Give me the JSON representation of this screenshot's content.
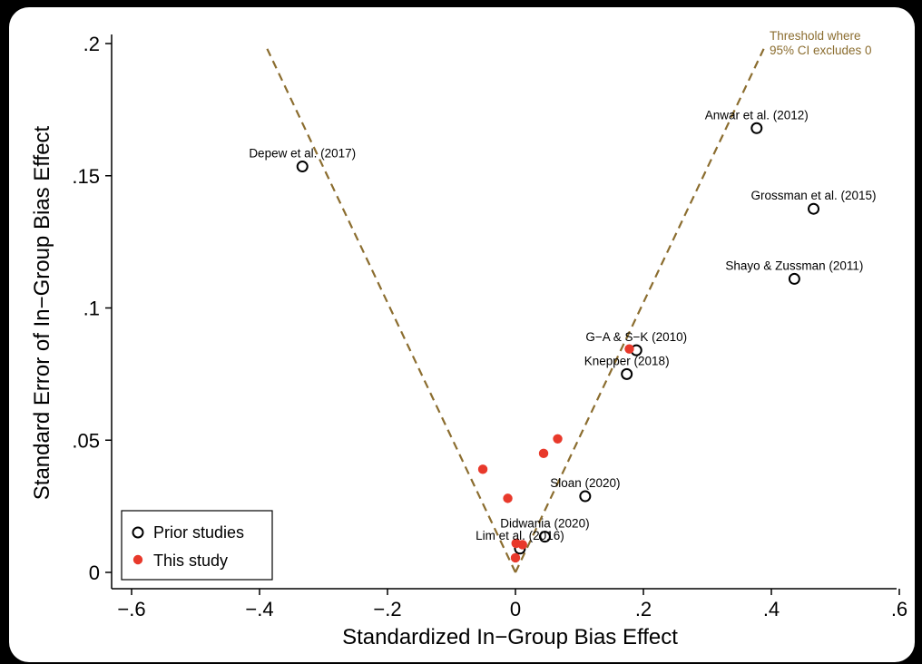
{
  "chart_data": {
    "type": "scatter",
    "title": "",
    "xlabel": "Standardized In−Group Bias Effect",
    "ylabel": "Standard Error of In−Group Bias Effect",
    "xlim": [
      -0.6,
      0.6
    ],
    "ylim": [
      0,
      0.2
    ],
    "xticks": [
      {
        "value": -0.6,
        "label": "−.6"
      },
      {
        "value": -0.4,
        "label": "−.4"
      },
      {
        "value": -0.2,
        "label": "−.2"
      },
      {
        "value": 0,
        "label": "0"
      },
      {
        "value": 0.2,
        "label": ".2"
      },
      {
        "value": 0.4,
        "label": ".4"
      },
      {
        "value": 0.6,
        "label": ".6"
      }
    ],
    "yticks": [
      {
        "value": 0,
        "label": "0"
      },
      {
        "value": 0.05,
        "label": ".05"
      },
      {
        "value": 0.1,
        "label": ".1"
      },
      {
        "value": 0.15,
        "label": ".15"
      },
      {
        "value": 0.2,
        "label": ".2"
      }
    ],
    "grid": false,
    "legend_position": "bottom-left",
    "threshold": {
      "label_lines": [
        "Threshold where",
        "95% CI excludes 0"
      ],
      "color": "#8B6D2F",
      "z": 1.96,
      "se_max": 0.2
    },
    "series": [
      {
        "name": "Prior studies",
        "marker": "hollow-circle",
        "color": "#000000",
        "points": [
          {
            "x": -0.333,
            "y": 0.1535,
            "label": "Depew et al. (2017)"
          },
          {
            "x": 0.377,
            "y": 0.168,
            "label": "Anwar et al. (2012)"
          },
          {
            "x": 0.466,
            "y": 0.1375,
            "label": "Grossman et al. (2015)"
          },
          {
            "x": 0.436,
            "y": 0.111,
            "label": "Shayo & Zussman (2011)"
          },
          {
            "x": 0.189,
            "y": 0.084,
            "label": "G−A & S−K (2010)"
          },
          {
            "x": 0.174,
            "y": 0.075,
            "label": "Knepper (2018)"
          },
          {
            "x": 0.109,
            "y": 0.0288,
            "label": "Sloan (2020)"
          },
          {
            "x": 0.046,
            "y": 0.0135,
            "label": "Didwania (2020)"
          },
          {
            "x": 0.007,
            "y": 0.009,
            "label": "Lim et al. (2016)"
          }
        ]
      },
      {
        "name": "This study",
        "marker": "filled-circle",
        "color": "#E8392B",
        "points": [
          {
            "x": -0.051,
            "y": 0.039
          },
          {
            "x": -0.012,
            "y": 0.028
          },
          {
            "x": 0.044,
            "y": 0.045
          },
          {
            "x": 0.066,
            "y": 0.0505
          },
          {
            "x": 0.178,
            "y": 0.0845
          },
          {
            "x": 0.001,
            "y": 0.011
          },
          {
            "x": 0.011,
            "y": 0.0105
          },
          {
            "x": 0.0,
            "y": 0.0055
          }
        ]
      }
    ]
  }
}
